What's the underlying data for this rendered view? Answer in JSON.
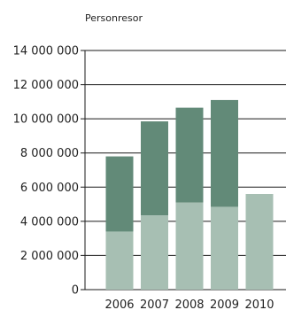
{
  "chart_data": {
    "type": "bar",
    "stacked": true,
    "unit_label": "Personresor",
    "categories": [
      "2006",
      "2007",
      "2008",
      "2009",
      "2010"
    ],
    "series": [
      {
        "values": [
          3400000,
          4350000,
          5100000,
          4850000,
          5600000
        ],
        "color": "#a7bfb3"
      },
      {
        "values": [
          4400000,
          5500000,
          5550000,
          6250000,
          0
        ],
        "color": "#628a78"
      }
    ],
    "yticks": [
      "0",
      "2 000 000",
      "4 000 000",
      "6 000 000",
      "8 000 000",
      "10 000 000",
      "12 000 000",
      "14 000 000"
    ],
    "ylim": [
      0,
      14000000
    ],
    "grid": true
  }
}
